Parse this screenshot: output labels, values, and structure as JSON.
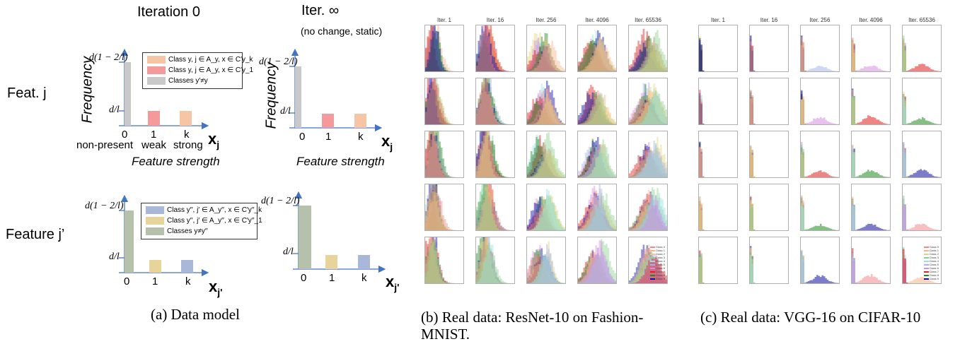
{
  "panel_a": {
    "title_iter0": "Iteration 0",
    "title_iterinf": "Iter. ∞",
    "subtitle_iterinf": "(no change, static)",
    "row_label_j": "Feat. j",
    "row_label_jp": "Feature j’",
    "ylabel": "Frequency",
    "xlabel": "Feature strength",
    "xvar_j": "x",
    "xvar_j_sub": "j",
    "xvar_jp": "x",
    "xvar_jp_sub": "j'",
    "y_top_tick": "d(1 − 2/l)",
    "y_low_tick": "d/l",
    "tick_0": "0",
    "tick_1": "1",
    "tick_k": "k",
    "tick_sub_0": "non-present",
    "tick_sub_1": "weak",
    "tick_sub_k": "strong",
    "legend_j": [
      {
        "label": "Class y, j ∈ A_y, x ∈ C′y_k",
        "color": "#f6c5a6"
      },
      {
        "label": "Class y, j ∈ A_y, x ∈ C′y_1",
        "color": "#f59a9a"
      },
      {
        "label": "Classes y′≠y",
        "color": "#c9c9c9"
      }
    ],
    "legend_jp": [
      {
        "label": "Class y′′, j′ ∈ A_y′′, x ∈ C′y′′_k",
        "color": "#a9b8d9"
      },
      {
        "label": "Class y′′, j′ ∈ A_y′′, x ∈ C′y′′_1",
        "color": "#e6d49a"
      },
      {
        "label": "Classes y≠y′′",
        "color": "#b6c1ab"
      }
    ],
    "caption": "(a) Data model"
  },
  "panel_b": {
    "col_titles": [
      "Iter. 1",
      "Iter. 16",
      "Iter. 256",
      "Iter. 4096",
      "Iter. 65536"
    ],
    "caption_line1": "(b) Real data: ResNet-10 on Fashion-",
    "caption_line2": "MNIST."
  },
  "panel_c": {
    "col_titles": [
      "Iter. 1",
      "Iter. 16",
      "Iter. 256",
      "Iter. 4096",
      "Iter. 65536"
    ],
    "caption": "(c) Real data: VGG-16 on CIFAR-10"
  },
  "mini_legend": [
    "Class 0",
    "Class 1",
    "Class 2",
    "Class 3",
    "Class 4",
    "Class 5",
    "Class 6",
    "Class 7",
    "Class 8",
    "Class 9"
  ],
  "colors": {
    "axis_blue": "#4472c4",
    "class": [
      "#f08a8a",
      "#f6b48a",
      "#e8d37a",
      "#8ed08e",
      "#9be0e0",
      "#a8b4ee",
      "#d58ee0",
      "#e02020",
      "#208a20",
      "#1010a0"
    ]
  }
}
